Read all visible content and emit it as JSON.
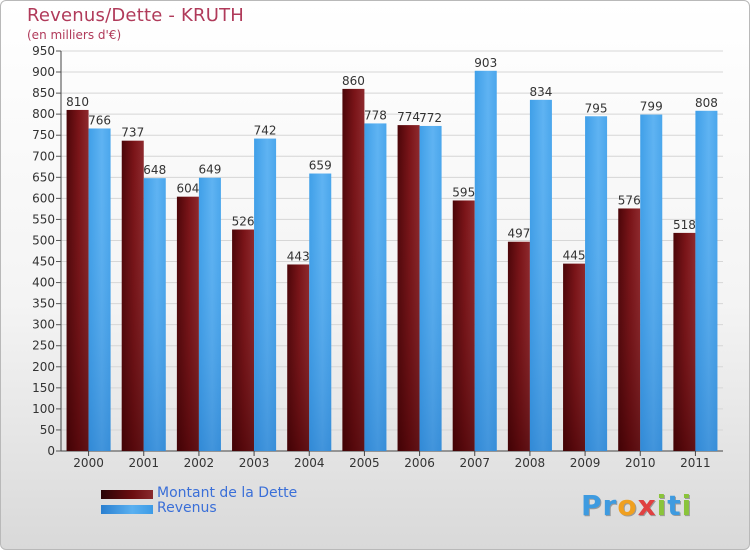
{
  "chart_data": {
    "type": "bar",
    "title": "Revenus/Dette - KRUTH",
    "subtitle": "(en milliers d'€)",
    "xlabel": "",
    "ylabel": "",
    "ylim": [
      0,
      950
    ],
    "ytick_step": 50,
    "grid": true,
    "legend_position": "bottom-left",
    "categories": [
      "2000",
      "2001",
      "2002",
      "2003",
      "2004",
      "2005",
      "2006",
      "2007",
      "2008",
      "2009",
      "2010",
      "2011"
    ],
    "series": [
      {
        "name": "Montant de la Dette",
        "color": "#6b0d10",
        "values": [
          810,
          737,
          604,
          526,
          443,
          860,
          774,
          595,
          497,
          445,
          576,
          518
        ]
      },
      {
        "name": "Revenus",
        "color": "#3d9be6",
        "values": [
          766,
          648,
          649,
          742,
          659,
          778,
          772,
          903,
          834,
          795,
          799,
          808
        ]
      }
    ]
  },
  "logo": {
    "text": "Proxiti"
  }
}
